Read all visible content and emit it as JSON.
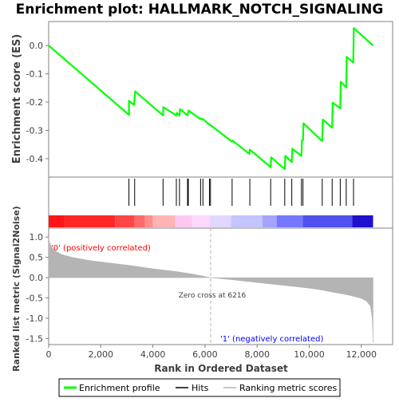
{
  "chart_data": {
    "type": "line",
    "title": "Enrichment plot: HALLMARK_NOTCH_SIGNALING",
    "xlabel": "Rank in Ordered Dataset",
    "xlim": [
      0,
      13200
    ],
    "x_ticks": [
      0,
      2000,
      4000,
      6000,
      8000,
      10000,
      12000
    ],
    "x_tick_labels": [
      "0",
      "2,000",
      "4,000",
      "6,000",
      "8,000",
      "10,000",
      "12,000"
    ],
    "es_panel": {
      "ylabel": "Enrichment score (ES)",
      "ylim": [
        -0.465,
        0.085
      ],
      "y_ticks": [
        0.0,
        -0.1,
        -0.2,
        -0.3,
        -0.4
      ],
      "y_tick_labels": [
        "0.0",
        "-0.1",
        "-0.2",
        "-0.3",
        "-0.4"
      ],
      "grid": false,
      "series": [
        {
          "name": "Enrichment profile",
          "color": "#00ff00",
          "x": [
            0,
            3080,
            3080,
            3280,
            3320,
            4390,
            4400,
            4900,
            4920,
            5020,
            5040,
            5330,
            5370,
            5830,
            5850,
            5910,
            5930,
            6170,
            6190,
            7040,
            7060,
            7700,
            7720,
            8520,
            8540,
            9060,
            9080,
            9330,
            9350,
            9700,
            9720,
            9760,
            9780,
            10500,
            10520,
            10880,
            10900,
            11190,
            11210,
            11420,
            11440,
            11690,
            11710,
            12450
          ],
          "y": [
            0.0,
            -0.245,
            -0.195,
            -0.21,
            -0.162,
            -0.247,
            -0.218,
            -0.247,
            -0.238,
            -0.247,
            -0.225,
            -0.247,
            -0.23,
            -0.26,
            -0.258,
            -0.262,
            -0.26,
            -0.28,
            -0.28,
            -0.34,
            -0.336,
            -0.383,
            -0.368,
            -0.43,
            -0.395,
            -0.437,
            -0.39,
            -0.412,
            -0.365,
            -0.39,
            -0.335,
            -0.335,
            -0.275,
            -0.338,
            -0.262,
            -0.29,
            -0.202,
            -0.222,
            -0.128,
            -0.148,
            -0.04,
            -0.06,
            0.062,
            0.0
          ]
        }
      ]
    },
    "hits_panel": {
      "hit_positions": [
        3080,
        3300,
        4390,
        4900,
        5020,
        5330,
        5360,
        5830,
        5920,
        6170,
        6210,
        7040,
        7720,
        8520,
        9060,
        9330,
        9700,
        9760,
        10500,
        10880,
        11190,
        11420,
        11700
      ],
      "color": "#000000"
    },
    "heat_bar": {
      "colors": [
        "#ff1515",
        "#ff2626",
        "#ff4545",
        "#ff6a6a",
        "#ff8e8e",
        "#ffb4b4",
        "#ffc8f0",
        "#fcd8fb",
        "#e0d8ff",
        "#c4c4ff",
        "#a4a4ff",
        "#7676ff",
        "#5050ee",
        "#1e10cc"
      ],
      "boundaries": [
        0,
        600,
        2550,
        3300,
        3700,
        4000,
        4850,
        5500,
        6200,
        7000,
        8200,
        8750,
        9750,
        11650,
        12450
      ]
    },
    "metric_panel": {
      "ylabel": "Ranked list metric (Signal2Noise)",
      "ylim": [
        -1.65,
        1.22
      ],
      "y_ticks": [
        1.0,
        0.5,
        0.0,
        -0.5,
        -1.0,
        -1.5
      ],
      "y_tick_labels": [
        "1.0",
        "0.5",
        "0.0",
        "-0.5",
        "-1.0",
        "-1.5"
      ],
      "fill_color": "#b4b4b4",
      "curve_x": [
        0,
        25,
        60,
        120,
        250,
        500,
        900,
        1500,
        2200,
        3000,
        4000,
        5000,
        5600,
        6216,
        7000,
        8000,
        9000,
        10000,
        10500,
        11000,
        11500,
        12000,
        12200,
        12350,
        12420,
        12450
      ],
      "curve_y": [
        1.0,
        0.9,
        0.82,
        0.74,
        0.66,
        0.57,
        0.5,
        0.43,
        0.37,
        0.31,
        0.22,
        0.14,
        0.08,
        0.0,
        -0.05,
        -0.12,
        -0.19,
        -0.26,
        -0.31,
        -0.37,
        -0.43,
        -0.51,
        -0.58,
        -0.7,
        -1.0,
        -1.6
      ],
      "zero_cross": 6216,
      "zero_cross_label": "Zero cross at 6216",
      "pos_label": "'0' (positively correlated)",
      "pos_color": "#ff0000",
      "neg_label": "'1' (negatively correlated)",
      "neg_color": "#0000ff"
    },
    "legend": {
      "placement": "bottom",
      "items": [
        {
          "label": "Enrichment profile",
          "color": "#00ff00"
        },
        {
          "label": "Hits",
          "color": "#000000"
        },
        {
          "label": "Ranking metric scores",
          "color": "#b4b4b4"
        }
      ]
    }
  }
}
